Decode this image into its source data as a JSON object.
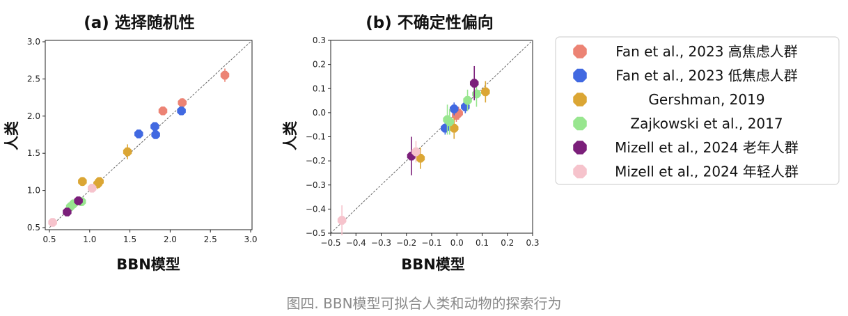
{
  "caption": "图四. BBN模型可拟合人类和动物的探索行为",
  "legend": {
    "position": "right",
    "entries": [
      {
        "label": "Fan et al., 2023 高焦虑人群",
        "color": "#ec8374"
      },
      {
        "label": "Fan et al., 2023 低焦虑人群",
        "color": "#4169e1"
      },
      {
        "label": "Gershman, 2019",
        "color": "#dba634"
      },
      {
        "label": "Zajkowski et al., 2017",
        "color": "#98e68f"
      },
      {
        "label": "Mizell et al., 2024 老年人群",
        "color": "#7b1f7a"
      },
      {
        "label": "Mizell et al., 2024 年轻人群",
        "color": "#f6c3cc"
      }
    ]
  },
  "chart_data": [
    {
      "type": "scatter",
      "title": "(a) 选择随机性",
      "xlabel": "BBN模型",
      "ylabel": "人类",
      "xlim": [
        0.5,
        3.0
      ],
      "ylim": [
        0.5,
        3.0
      ],
      "xticks": [
        "0.5",
        "1.0",
        "1.5",
        "2.0",
        "2.5",
        "3.0"
      ],
      "yticks": [
        "0.5",
        "1.0",
        "1.5",
        "2.0",
        "2.5",
        "3.0"
      ],
      "diagonal": true,
      "grid": false,
      "series": [
        {
          "name": "Fan et al., 2023 高焦虑人群",
          "color": "#ec8374",
          "points": [
            {
              "x": 1.91,
              "y": 2.07,
              "err": 0.05
            },
            {
              "x": 2.15,
              "y": 2.18,
              "err": 0.06
            },
            {
              "x": 2.68,
              "y": 2.55,
              "err": 0.09
            }
          ]
        },
        {
          "name": "Fan et al., 2023 低焦虑人群",
          "color": "#4169e1",
          "points": [
            {
              "x": 1.61,
              "y": 1.76,
              "err": 0.04
            },
            {
              "x": 1.81,
              "y": 1.86,
              "err": 0.04
            },
            {
              "x": 1.82,
              "y": 1.75,
              "err": 0.04
            },
            {
              "x": 2.14,
              "y": 2.07,
              "err": 0.05
            }
          ]
        },
        {
          "name": "Gershman, 2019",
          "color": "#dba634",
          "points": [
            {
              "x": 0.91,
              "y": 1.12,
              "err": 0.06
            },
            {
              "x": 1.1,
              "y": 1.09,
              "err": 0.07
            },
            {
              "x": 1.12,
              "y": 1.12,
              "err": 0.05
            },
            {
              "x": 1.47,
              "y": 1.52,
              "err": 0.1
            }
          ]
        },
        {
          "name": "Zajkowski et al., 2017",
          "color": "#98e68f",
          "points": [
            {
              "x": 0.76,
              "y": 0.78,
              "err": 0.05
            },
            {
              "x": 0.8,
              "y": 0.82,
              "err": 0.04
            },
            {
              "x": 0.9,
              "y": 0.85,
              "err": 0.06
            }
          ]
        },
        {
          "name": "Mizell et al., 2024 老年人群",
          "color": "#7b1f7a",
          "points": [
            {
              "x": 0.72,
              "y": 0.71,
              "err": 0.04
            },
            {
              "x": 0.86,
              "y": 0.86,
              "err": 0.05
            }
          ]
        },
        {
          "name": "Mizell et al., 2024 年轻人群",
          "color": "#f6c3cc",
          "points": [
            {
              "x": 0.54,
              "y": 0.57,
              "err": 0.04
            },
            {
              "x": 1.03,
              "y": 1.03,
              "err": 0.05
            }
          ]
        }
      ]
    },
    {
      "type": "scatter",
      "title": "(b) 不确定性偏向",
      "xlabel": "BBN模型",
      "ylabel": "人类",
      "xlim": [
        -0.55,
        0.35
      ],
      "ylim": [
        -0.55,
        0.35
      ],
      "xticks": [
        "−0.5",
        "−0.4",
        "−0.3",
        "−0.2",
        "−0.1",
        "0.0",
        "0.1",
        "0.2",
        "0.3"
      ],
      "yticks": [
        "−0.5",
        "−0.4",
        "−0.3",
        "−0.2",
        "−0.1",
        "0.0",
        "0.1",
        "0.2",
        "0.3"
      ],
      "diagonal": true,
      "grid": false,
      "series": [
        {
          "name": "Fan et al., 2023 高焦虑人群",
          "color": "#ec8374",
          "points": [
            {
              "x": 0.01,
              "y": 0.0,
              "err": 0.03
            },
            {
              "x": 0.02,
              "y": 0.01,
              "err": 0.03
            }
          ]
        },
        {
          "name": "Fan et al., 2023 低焦虑人群",
          "color": "#4169e1",
          "points": [
            {
              "x": -0.04,
              "y": -0.06,
              "err": 0.03
            },
            {
              "x": 0.0,
              "y": 0.03,
              "err": 0.03
            },
            {
              "x": 0.05,
              "y": 0.04,
              "err": 0.03
            }
          ]
        },
        {
          "name": "Gershman, 2019",
          "color": "#dba634",
          "points": [
            {
              "x": -0.15,
              "y": -0.2,
              "err": 0.05
            },
            {
              "x": 0.0,
              "y": -0.06,
              "err": 0.05
            },
            {
              "x": 0.14,
              "y": 0.11,
              "err": 0.05
            }
          ]
        },
        {
          "name": "Zajkowski et al., 2017",
          "color": "#98e68f",
          "points": [
            {
              "x": -0.03,
              "y": -0.02,
              "err": 0.07
            },
            {
              "x": -0.02,
              "y": -0.03,
              "err": 0.06
            },
            {
              "x": 0.06,
              "y": 0.07,
              "err": 0.05
            },
            {
              "x": 0.1,
              "y": 0.1,
              "err": 0.06
            }
          ]
        },
        {
          "name": "Mizell et al., 2024 老年人群",
          "color": "#7b1f7a",
          "points": [
            {
              "x": -0.19,
              "y": -0.19,
              "err": 0.09
            },
            {
              "x": 0.09,
              "y": 0.15,
              "err": 0.08
            }
          ]
        },
        {
          "name": "Mizell et al., 2024 年轻人群",
          "color": "#f6c3cc",
          "points": [
            {
              "x": -0.5,
              "y": -0.49,
              "err": 0.07
            },
            {
              "x": -0.17,
              "y": -0.17,
              "err": 0.05
            }
          ]
        }
      ]
    }
  ]
}
